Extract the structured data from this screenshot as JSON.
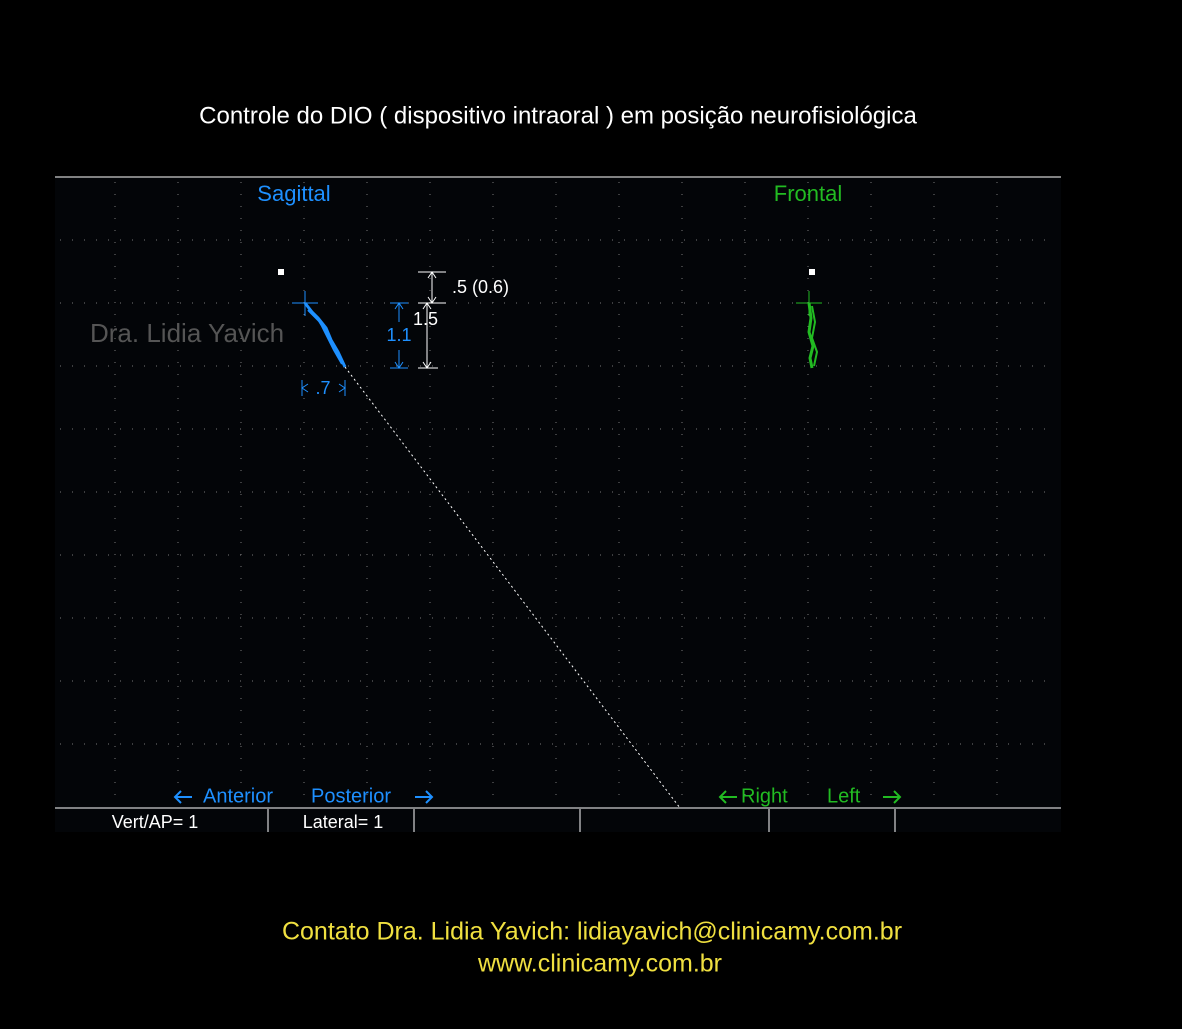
{
  "header": {
    "title": "Controle do DIO ( dispositivo intraoral ) em posição neurofisiológica"
  },
  "panels": {
    "sagittal": {
      "label": "Sagittal",
      "watermark": "Dra. Lidia Yavich",
      "dimension_top": ".5 (0.6)",
      "dimension_total": "1.5",
      "dimension_vertical": "1.1",
      "dimension_horizontal": ".7",
      "direction_left": "Anterior",
      "direction_right": "Posterior"
    },
    "frontal": {
      "label": "Frontal",
      "direction_left": "Right",
      "direction_right": "Left"
    }
  },
  "status_bar": {
    "scale_vertical": "Vert/AP= 1",
    "scale_lateral": "Lateral= 1"
  },
  "footer": {
    "contact": "Contato  Dra. Lidia Yavich:  lidiayavich@clinicamy.com.br",
    "website": "www.clinicamy.com.br"
  }
}
